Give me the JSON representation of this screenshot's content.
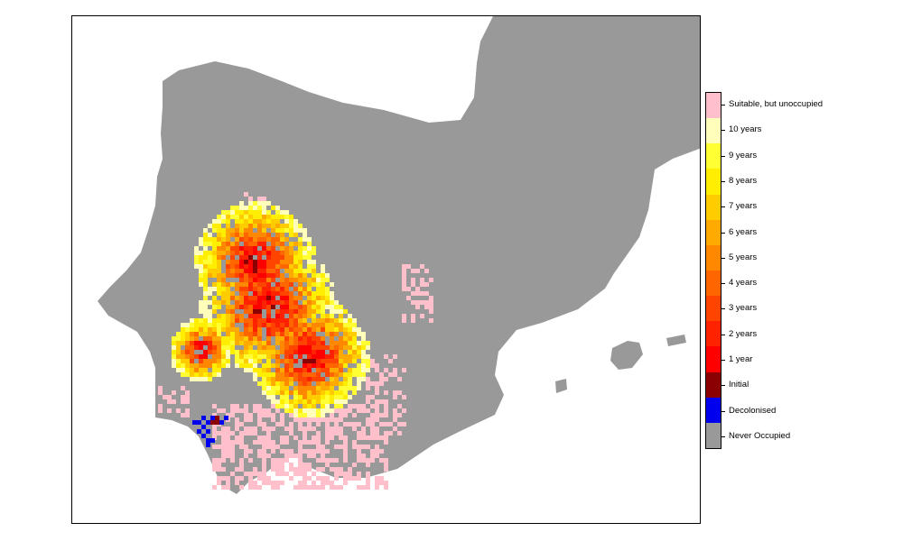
{
  "colors": {
    "never_occupied": "#999999",
    "decolonised": "#0000ee",
    "initial": "#8b0000",
    "y1": "#ff0000",
    "y2": "#ff2200",
    "y3": "#ff4400",
    "y4": "#ff6600",
    "y5": "#ff8800",
    "y6": "#ffaa00",
    "y7": "#ffcc00",
    "y8": "#ffee00",
    "y9": "#ffff33",
    "y10": "#ffffbb",
    "suitable": "#ffc0cb"
  },
  "legend": {
    "items": [
      {
        "key": "suitable",
        "label": "Suitable, but unoccupied"
      },
      {
        "key": "y10",
        "label": "10 years"
      },
      {
        "key": "y9",
        "label": "9 years"
      },
      {
        "key": "y8",
        "label": "8 years"
      },
      {
        "key": "y7",
        "label": "7 years"
      },
      {
        "key": "y6",
        "label": "6 years"
      },
      {
        "key": "y5",
        "label": "5 years"
      },
      {
        "key": "y4",
        "label": "4 years"
      },
      {
        "key": "y3",
        "label": "3 years"
      },
      {
        "key": "y2",
        "label": "2 years"
      },
      {
        "key": "y1",
        "label": "1 year"
      },
      {
        "key": "initial",
        "label": "Initial"
      },
      {
        "key": "decolonised",
        "label": "Decolonised"
      },
      {
        "key": "never_occupied",
        "label": "Never Occupied"
      }
    ]
  }
}
